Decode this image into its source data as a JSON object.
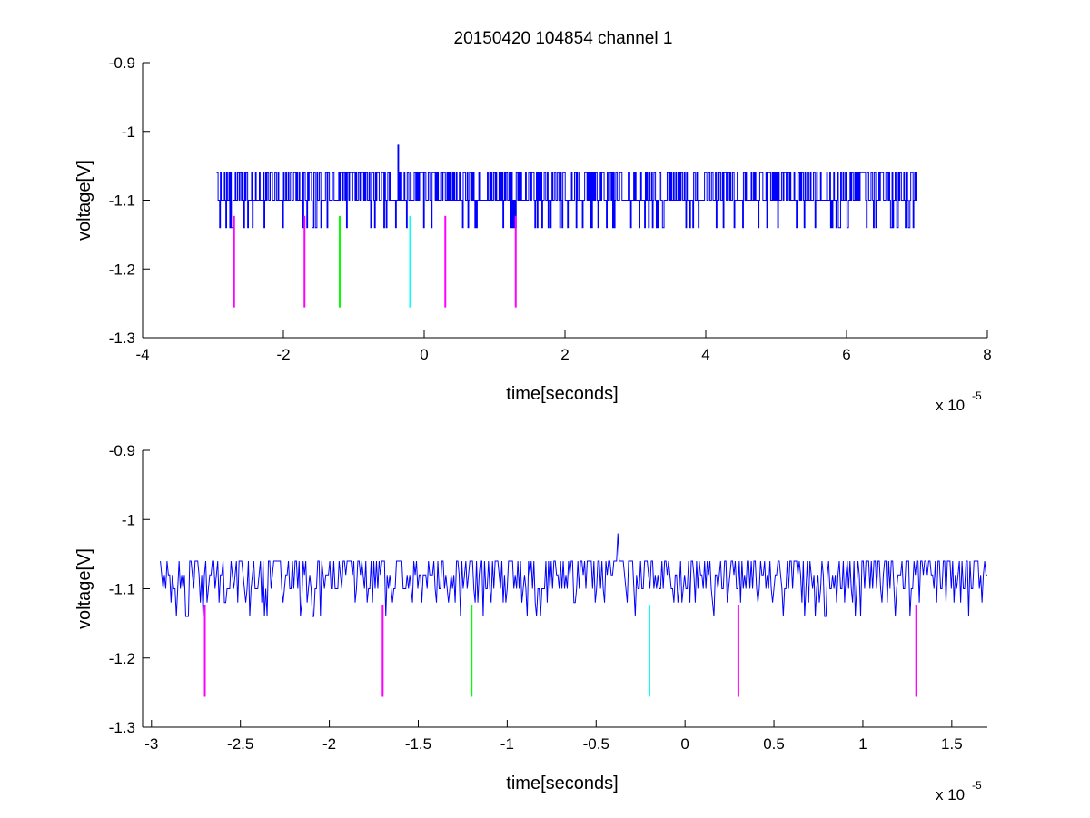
{
  "title": "20150420 104854 channel 1",
  "colors": {
    "signal": "#0000ff",
    "marker_magenta": "#ff00ff",
    "marker_green": "#00ff00",
    "marker_cyan": "#00ffff",
    "axes": "#000000"
  },
  "chart_data": [
    {
      "type": "line",
      "xlabel": "time[seconds]",
      "ylabel": "voltage[V]",
      "x_exponent_base": "x 10",
      "x_exponent_power": "-5",
      "xlim": [
        -4,
        8
      ],
      "ylim": [
        -1.3,
        -0.9
      ],
      "xticks": [
        -4,
        -2,
        0,
        2,
        4,
        6,
        8
      ],
      "xtick_labels": [
        "-4",
        "-2",
        "0",
        "2",
        "4",
        "6",
        "8"
      ],
      "yticks": [
        -1.3,
        -1.2,
        -1.1,
        -1.0,
        -0.9
      ],
      "ytick_labels": [
        "-1.3",
        "-1.2",
        "-1.1",
        "-1",
        "-0.9"
      ],
      "grid": false,
      "signal": {
        "x_range": [
          -2.95,
          7.0
        ],
        "baseline": -1.1,
        "levels": [
          -1.06,
          -1.1,
          -1.14
        ],
        "spike": {
          "x": -0.37,
          "y": -1.02
        }
      },
      "markers": [
        {
          "x": -2.7,
          "y_top": -1.123,
          "y_bottom": -1.256,
          "color": "magenta"
        },
        {
          "x": -1.7,
          "y_top": -1.123,
          "y_bottom": -1.256,
          "color": "magenta"
        },
        {
          "x": -1.2,
          "y_top": -1.123,
          "y_bottom": -1.256,
          "color": "green"
        },
        {
          "x": -0.2,
          "y_top": -1.123,
          "y_bottom": -1.256,
          "color": "cyan"
        },
        {
          "x": 0.3,
          "y_top": -1.123,
          "y_bottom": -1.256,
          "color": "magenta"
        },
        {
          "x": 1.3,
          "y_top": -1.123,
          "y_bottom": -1.256,
          "color": "magenta"
        }
      ]
    },
    {
      "type": "line",
      "xlabel": "time[seconds]",
      "ylabel": "voltage[V]",
      "x_exponent_base": "x 10",
      "x_exponent_power": "-5",
      "xlim": [
        -3.05,
        1.7
      ],
      "ylim": [
        -1.3,
        -0.9
      ],
      "xticks": [
        -3,
        -2.5,
        -2,
        -1.5,
        -1,
        -0.5,
        0,
        0.5,
        1,
        1.5
      ],
      "xtick_labels": [
        "-3",
        "-2.5",
        "-2",
        "-1.5",
        "-1",
        "-0.5",
        "0",
        "0.5",
        "1",
        "1.5"
      ],
      "yticks": [
        -1.3,
        -1.2,
        -1.1,
        -1.0,
        -0.9
      ],
      "ytick_labels": [
        "-1.3",
        "-1.2",
        "-1.1",
        "-1",
        "-0.9"
      ],
      "grid": false,
      "signal": {
        "x_range": [
          -2.95,
          1.7
        ],
        "baseline": -1.1,
        "levels": [
          -1.06,
          -1.08,
          -1.1,
          -1.12,
          -1.14
        ],
        "spike": {
          "x": -0.38,
          "y": -1.02
        }
      },
      "markers": [
        {
          "x": -2.7,
          "y_top": -1.123,
          "y_bottom": -1.256,
          "color": "magenta"
        },
        {
          "x": -1.7,
          "y_top": -1.123,
          "y_bottom": -1.256,
          "color": "magenta"
        },
        {
          "x": -1.2,
          "y_top": -1.123,
          "y_bottom": -1.256,
          "color": "green"
        },
        {
          "x": -0.2,
          "y_top": -1.123,
          "y_bottom": -1.256,
          "color": "cyan"
        },
        {
          "x": 0.3,
          "y_top": -1.123,
          "y_bottom": -1.256,
          "color": "magenta"
        },
        {
          "x": 1.3,
          "y_top": -1.123,
          "y_bottom": -1.256,
          "color": "magenta"
        }
      ]
    }
  ]
}
